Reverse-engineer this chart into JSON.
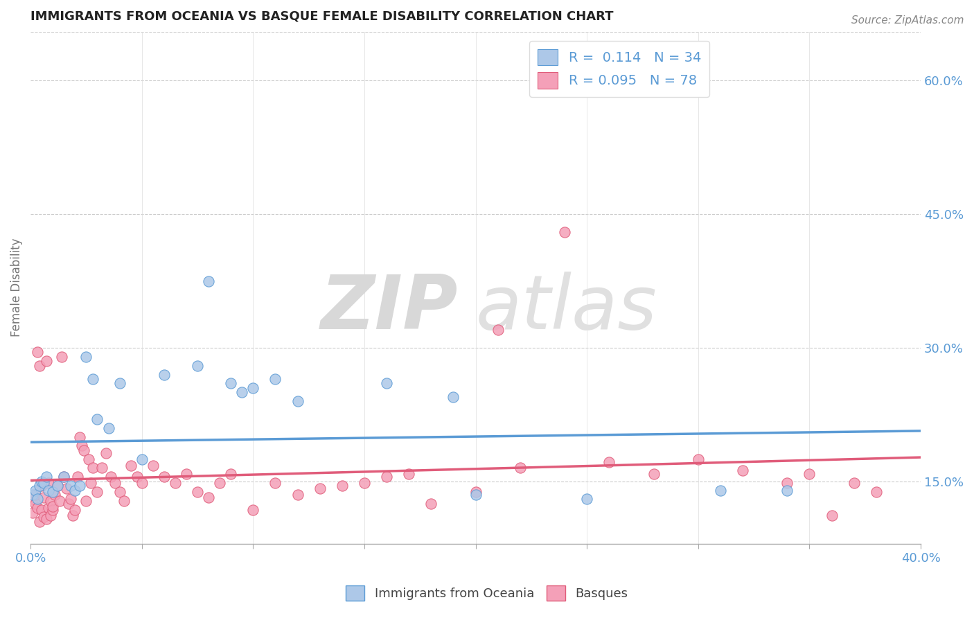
{
  "title": "IMMIGRANTS FROM OCEANIA VS BASQUE FEMALE DISABILITY CORRELATION CHART",
  "source": "Source: ZipAtlas.com",
  "ylabel": "Female Disability",
  "right_yticks": [
    0.15,
    0.3,
    0.45,
    0.6
  ],
  "right_ytick_labels": [
    "15.0%",
    "30.0%",
    "45.0%",
    "60.0%"
  ],
  "xlim": [
    0.0,
    0.4
  ],
  "ylim": [
    0.08,
    0.655
  ],
  "series1": {
    "name": "Immigrants from Oceania",
    "color": "#adc8e8",
    "edge_color": "#5b9bd5",
    "R": 0.114,
    "N": 34,
    "x": [
      0.001,
      0.002,
      0.003,
      0.004,
      0.005,
      0.006,
      0.007,
      0.008,
      0.01,
      0.012,
      0.015,
      0.018,
      0.02,
      0.022,
      0.025,
      0.028,
      0.03,
      0.035,
      0.04,
      0.05,
      0.06,
      0.075,
      0.08,
      0.09,
      0.095,
      0.1,
      0.11,
      0.12,
      0.16,
      0.19,
      0.2,
      0.25,
      0.31,
      0.34
    ],
    "y": [
      0.135,
      0.14,
      0.13,
      0.145,
      0.15,
      0.148,
      0.155,
      0.14,
      0.138,
      0.145,
      0.155,
      0.145,
      0.14,
      0.145,
      0.29,
      0.265,
      0.22,
      0.21,
      0.26,
      0.175,
      0.27,
      0.28,
      0.375,
      0.26,
      0.25,
      0.255,
      0.265,
      0.24,
      0.26,
      0.245,
      0.135,
      0.13,
      0.14,
      0.14
    ]
  },
  "series2": {
    "name": "Basques",
    "color": "#f4a0b8",
    "edge_color": "#e05c7a",
    "R": 0.095,
    "N": 78,
    "x": [
      0.001,
      0.001,
      0.002,
      0.002,
      0.003,
      0.003,
      0.004,
      0.004,
      0.005,
      0.005,
      0.006,
      0.006,
      0.007,
      0.007,
      0.008,
      0.008,
      0.009,
      0.009,
      0.01,
      0.01,
      0.011,
      0.012,
      0.013,
      0.014,
      0.015,
      0.016,
      0.017,
      0.018,
      0.019,
      0.02,
      0.021,
      0.022,
      0.023,
      0.024,
      0.025,
      0.026,
      0.027,
      0.028,
      0.03,
      0.032,
      0.034,
      0.036,
      0.038,
      0.04,
      0.042,
      0.045,
      0.048,
      0.05,
      0.055,
      0.06,
      0.065,
      0.07,
      0.075,
      0.08,
      0.085,
      0.09,
      0.1,
      0.11,
      0.12,
      0.13,
      0.14,
      0.15,
      0.16,
      0.17,
      0.18,
      0.2,
      0.21,
      0.22,
      0.24,
      0.26,
      0.28,
      0.3,
      0.32,
      0.34,
      0.35,
      0.36,
      0.37,
      0.38
    ],
    "y": [
      0.115,
      0.13,
      0.125,
      0.135,
      0.12,
      0.295,
      0.105,
      0.28,
      0.118,
      0.145,
      0.11,
      0.132,
      0.108,
      0.285,
      0.12,
      0.148,
      0.112,
      0.128,
      0.118,
      0.122,
      0.135,
      0.145,
      0.128,
      0.29,
      0.155,
      0.142,
      0.125,
      0.13,
      0.112,
      0.118,
      0.155,
      0.2,
      0.19,
      0.185,
      0.128,
      0.175,
      0.148,
      0.165,
      0.138,
      0.165,
      0.182,
      0.155,
      0.148,
      0.138,
      0.128,
      0.168,
      0.155,
      0.148,
      0.168,
      0.155,
      0.148,
      0.158,
      0.138,
      0.132,
      0.148,
      0.158,
      0.118,
      0.148,
      0.135,
      0.142,
      0.145,
      0.148,
      0.155,
      0.158,
      0.125,
      0.138,
      0.32,
      0.165,
      0.43,
      0.172,
      0.158,
      0.175,
      0.162,
      0.148,
      0.158,
      0.112,
      0.148,
      0.138
    ]
  },
  "background_color": "#ffffff",
  "grid_color": "#cccccc",
  "trend_color1": "#5b9bd5",
  "trend_color2": "#e05c7a"
}
